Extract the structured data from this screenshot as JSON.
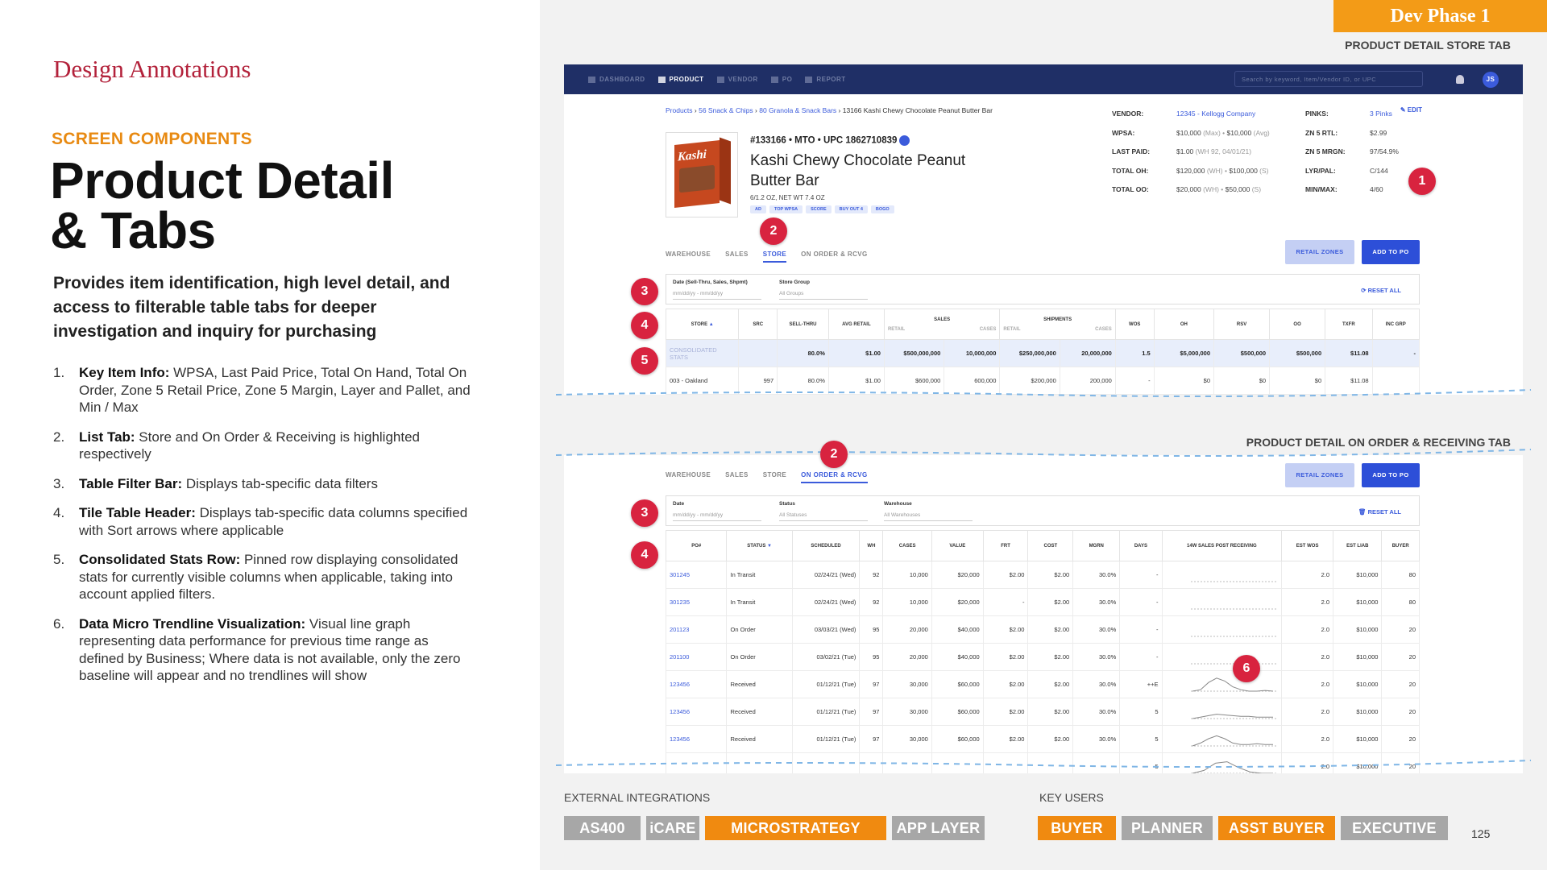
{
  "left": {
    "design_annotations": "Design Annotations",
    "screen_components": "SCREEN COMPONENTS",
    "title_line1": "Product Detail",
    "title_line2": "& Tabs",
    "description": "Provides item identification, high level detail, and access to filterable table tabs for deeper investigation and inquiry for purchasing",
    "notes": [
      {
        "num": "1.",
        "term": "Key Item Info:",
        "text": " WPSA, Last Paid Price, Total On Hand, Total On Order, Zone 5 Retail Price, Zone 5 Margin, Layer and Pallet, and Min / Max"
      },
      {
        "num": "2.",
        "term": "List Tab:",
        "text": " Store and On Order & Receiving is highlighted respectively"
      },
      {
        "num": "3.",
        "term": "Table Filter Bar:",
        "text": " Displays tab-specific data filters"
      },
      {
        "num": "4.",
        "term": "Tile Table Header:",
        "text": " Displays tab-specific data columns specified with Sort arrows where applicable"
      },
      {
        "num": "5.",
        "term": "Consolidated Stats Row:",
        "text": " Pinned row displaying consolidated stats for currently visible columns when applicable, taking into account applied filters."
      },
      {
        "num": "6.",
        "term": "Data Micro Trendline Visualization:",
        "text": " Visual line graph representing data performance for previous time range as defined by Business; Where data is not available, only the zero baseline will appear and no trendlines will show"
      }
    ]
  },
  "dev_phase": "Dev Phase 1",
  "labels": {
    "store_tab": "PRODUCT DETAIL STORE TAB",
    "onorder_tab": "PRODUCT DETAIL ON ORDER & RECEIVING TAB"
  },
  "nav": {
    "items": [
      "DASHBOARD",
      "PRODUCT",
      "VENDOR",
      "PO",
      "REPORT"
    ],
    "search_placeholder": "Search by keyword, Item/Vendor ID, or UPC",
    "avatar": "JS"
  },
  "product": {
    "breadcrumb": [
      "Products",
      "56 Snack & Chips",
      "80 Granola & Snack Bars",
      "13166 Kashi Chewy Chocolate Peanut Butter Bar"
    ],
    "edit": "EDIT",
    "id_line": "#133166 • MTO • UPC 1862710839",
    "name": "Kashi Chewy Chocolate Peanut Butter Bar",
    "size": "6/1.2 OZ, NET WT 7.4 OZ",
    "brand": "Kashi",
    "tags": [
      "AD",
      "TOP WPSA",
      "SCORE",
      "BUY OUT 4",
      "BOGO"
    ],
    "info_left": [
      {
        "k": "VENDOR:",
        "v": "12345 - Kellogg Company",
        "link": true
      },
      {
        "k": "WPSA:",
        "v": "$10,000",
        "g": " (Max) • ",
        "v2": "$10,000",
        "g2": " (Avg)"
      },
      {
        "k": "LAST PAID:",
        "v": "$1.00",
        "g": " (WH 92, 04/01/21)"
      },
      {
        "k": "TOTAL OH:",
        "v": "$120,000",
        "g": " (WH) • ",
        "v2": "$100,000",
        "g2": " (S)"
      },
      {
        "k": "TOTAL OO:",
        "v": "$20,000",
        "g": " (WH) • ",
        "v2": "$50,000",
        "g2": " (S)"
      }
    ],
    "info_right": [
      {
        "k": "PINKS:",
        "v": "3 Pinks",
        "link": true
      },
      {
        "k": "ZN 5 RTL:",
        "v": "$2.99"
      },
      {
        "k": "ZN 5 MRGN:",
        "v": "97/54.9%"
      },
      {
        "k": "LYR/PAL:",
        "v": "C/144"
      },
      {
        "k": "MIN/MAX:",
        "v": "4/60"
      }
    ]
  },
  "tabs": [
    "WAREHOUSE",
    "SALES",
    "STORE",
    "ON ORDER & RCVG"
  ],
  "buttons": {
    "retail_zones": "RETAIL ZONES",
    "add_to_po": "ADD TO PO"
  },
  "store_filters": {
    "f1_label": "Date (Sell-Thru, Sales, Shpmt)",
    "f1_value": "mm/dd/yy - mm/dd/yy",
    "f2_label": "Store Group",
    "f2_value": "All Groups",
    "reset": "RESET ALL"
  },
  "store_table": {
    "group_headers": {
      "sales": "SALES",
      "shipments": "SHIPMENTS"
    },
    "headers": [
      "STORE",
      "SRC",
      "SELL-THRU",
      "AVG RETAIL",
      "RETAIL",
      "CASES",
      "RETAIL",
      "CASES",
      "WOS",
      "OH",
      "RSV",
      "OO",
      "TXFR",
      "INC GRP"
    ],
    "rows": [
      [
        "CONSOLIDATED STATS",
        "",
        "80.0%",
        "$1.00",
        "$500,000,000",
        "10,000,000",
        "$250,000,000",
        "20,000,000",
        "1.5",
        "$5,000,000",
        "$500,000",
        "$500,000",
        "$11.08",
        "-"
      ],
      [
        "003 - Oakland",
        "997",
        "80.0%",
        "$1.00",
        "$600,000",
        "600,000",
        "$200,000",
        "200,000",
        "-",
        "$0",
        "$0",
        "$0",
        "$11.08",
        ""
      ]
    ]
  },
  "order_filters": {
    "f1_label": "Date",
    "f1_value": "mm/dd/yy - mm/dd/yy",
    "f2_label": "Status",
    "f2_value": "All Statuses",
    "f3_label": "Warehouse",
    "f3_value": "All Warehouses",
    "reset": "RESET ALL"
  },
  "order_table": {
    "headers": [
      "PO#",
      "STATUS",
      "SCHEDULED",
      "WH",
      "CASES",
      "VALUE",
      "FRT",
      "COST",
      "MGRN",
      "DAYS",
      "14W SALES POST RECEIVING",
      "EST WOS",
      "EST LIAB",
      "BUYER"
    ],
    "rows": [
      [
        "301245",
        "In Transit",
        "02/24/21 (Wed)",
        "92",
        "10,000",
        "$20,000",
        "$2.00",
        "$2.00",
        "30.0%",
        "-",
        "",
        "2.0",
        "$10,000",
        "80"
      ],
      [
        "301235",
        "In Transit",
        "02/24/21 (Wed)",
        "92",
        "10,000",
        "$20,000",
        "-",
        "$2.00",
        "30.0%",
        "-",
        "",
        "2.0",
        "$10,000",
        "80"
      ],
      [
        "201123",
        "On Order",
        "03/03/21 (Wed)",
        "95",
        "20,000",
        "$40,000",
        "$2.00",
        "$2.00",
        "30.0%",
        "-",
        "",
        "2.0",
        "$10,000",
        "20"
      ],
      [
        "201100",
        "On Order",
        "03/02/21 (Tue)",
        "95",
        "20,000",
        "$40,000",
        "$2.00",
        "$2.00",
        "30.0%",
        "-",
        "",
        "2.0",
        "$10,000",
        "20"
      ],
      [
        "123456",
        "Received",
        "01/12/21 (Tue)",
        "97",
        "30,000",
        "$60,000",
        "$2.00",
        "$2.00",
        "30.0%",
        "++E",
        "",
        "2.0",
        "$10,000",
        "20"
      ],
      [
        "123456",
        "Received",
        "01/12/21 (Tue)",
        "97",
        "30,000",
        "$60,000",
        "$2.00",
        "$2.00",
        "30.0%",
        "5",
        "",
        "2.0",
        "$10,000",
        "20"
      ],
      [
        "123456",
        "Received",
        "01/12/21 (Tue)",
        "97",
        "30,000",
        "$60,000",
        "$2.00",
        "$2.00",
        "30.0%",
        "5",
        "",
        "2.0",
        "$10,000",
        "20"
      ],
      [
        "",
        "",
        "",
        "",
        "",
        "",
        "",
        "",
        "",
        "5",
        "",
        "2.0",
        "$10,000",
        "20"
      ]
    ]
  },
  "footer": {
    "external_label": "EXTERNAL INTEGRATIONS",
    "external": [
      {
        "name": "AS400",
        "color": "gray"
      },
      {
        "name": "iCARE",
        "color": "gray"
      },
      {
        "name": "MICROSTRATEGY",
        "color": "orange"
      },
      {
        "name": "APP LAYER",
        "color": "gray"
      }
    ],
    "users_label": "KEY USERS",
    "users": [
      {
        "name": "BUYER",
        "color": "orange"
      },
      {
        "name": "PLANNER",
        "color": "gray"
      },
      {
        "name": "ASST BUYER",
        "color": "orange"
      },
      {
        "name": "EXECUTIVE",
        "color": "gray"
      }
    ],
    "page_number": "125"
  },
  "callouts": {
    "c1": "1",
    "c2": "2",
    "c3": "3",
    "c4": "4",
    "c5": "5",
    "c6": "6"
  }
}
